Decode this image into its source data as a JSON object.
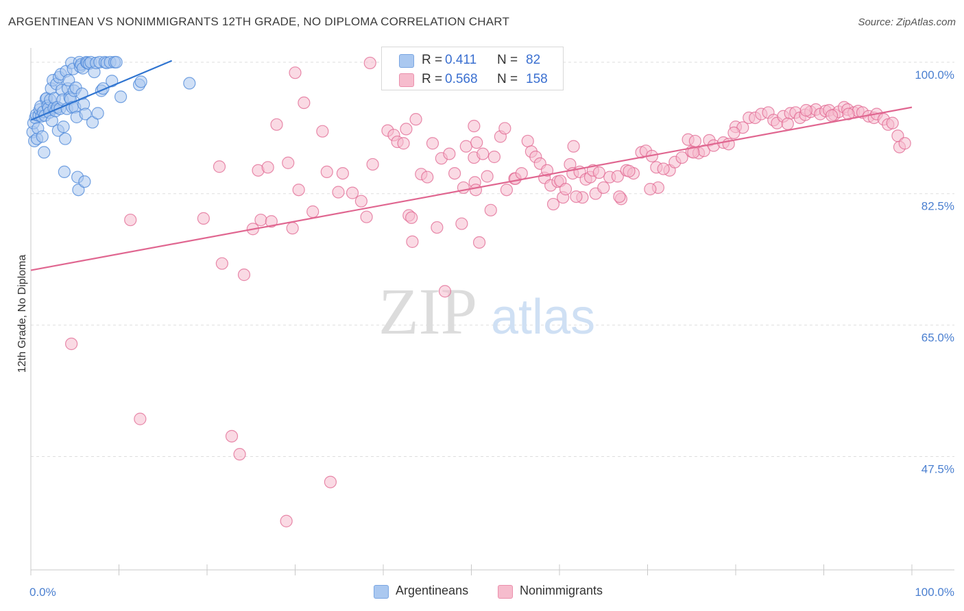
{
  "header": {
    "title": "ARGENTINEAN VS NONIMMIGRANTS 12TH GRADE, NO DIPLOMA CORRELATION CHART",
    "source": "Source: ZipAtlas.com"
  },
  "watermark": {
    "zip": "ZIP",
    "atlas": "atlas"
  },
  "legend": {
    "rows": [
      {
        "r_label": "R =",
        "r_value": "0.411",
        "n_label": "N =",
        "n_value": "82",
        "color": "#aac8f0"
      },
      {
        "r_label": "R =",
        "r_value": "0.568",
        "n_label": "N =",
        "n_value": "158",
        "color": "#f6bccd"
      }
    ]
  },
  "bottom_legend": {
    "items": [
      {
        "label": "Argentineans",
        "color": "#aac8f0"
      },
      {
        "label": "Nonimmigrants",
        "color": "#f6bccd"
      }
    ]
  },
  "chart_data": {
    "type": "scatter",
    "title": "ARGENTINEAN VS NONIMMIGRANTS 12TH GRADE, NO DIPLOMA CORRELATION CHART",
    "xlabel": "",
    "ylabel": "12th Grade, No Diploma",
    "xlim": [
      0,
      100
    ],
    "ylim": [
      32.4,
      101.9
    ],
    "x_tick_labels": [
      "0.0%",
      "100.0%"
    ],
    "y_ticks": [
      47.5,
      65.0,
      82.5,
      100.0
    ],
    "y_tick_labels": [
      "47.5%",
      "65.0%",
      "82.5%",
      "100.0%"
    ],
    "grid": "horizontal dashed",
    "legend_position": "top-center",
    "series": [
      {
        "name": "Argentineans",
        "color": "#4a86d8",
        "fill": "#a9c7ef",
        "regression": {
          "x": [
            0.0,
            16.0
          ],
          "y": 10.0,
          "y_end": 100.2,
          "y_start": 92.3
        },
        "points": [
          [
            0.2,
            90.7
          ],
          [
            0.3,
            91.9
          ],
          [
            0.4,
            89.5
          ],
          [
            0.5,
            92.6
          ],
          [
            0.6,
            93.0
          ],
          [
            0.7,
            89.8
          ],
          [
            0.8,
            91.2
          ],
          [
            0.9,
            92.9
          ],
          [
            1.0,
            93.7
          ],
          [
            1.1,
            94.1
          ],
          [
            1.2,
            92.8
          ],
          [
            1.3,
            90.1
          ],
          [
            1.4,
            93.4
          ],
          [
            1.5,
            88.0
          ],
          [
            1.6,
            92.9
          ],
          [
            1.7,
            95.1
          ],
          [
            1.8,
            95.2
          ],
          [
            1.9,
            94.2
          ],
          [
            2.0,
            93.9
          ],
          [
            2.1,
            93.3
          ],
          [
            2.2,
            95.0
          ],
          [
            2.3,
            96.5
          ],
          [
            2.4,
            92.2
          ],
          [
            2.5,
            97.6
          ],
          [
            2.6,
            93.9
          ],
          [
            2.7,
            95.2
          ],
          [
            2.8,
            93.5
          ],
          [
            2.9,
            97.1
          ],
          [
            3.0,
            94.0
          ],
          [
            3.1,
            90.9
          ],
          [
            3.2,
            98.0
          ],
          [
            3.3,
            93.8
          ],
          [
            3.4,
            98.4
          ],
          [
            3.5,
            96.3
          ],
          [
            3.6,
            95.0
          ],
          [
            3.7,
            91.4
          ],
          [
            3.8,
            85.4
          ],
          [
            3.9,
            89.8
          ],
          [
            4.0,
            98.8
          ],
          [
            4.1,
            93.8
          ],
          [
            4.2,
            96.5
          ],
          [
            4.3,
            97.6
          ],
          [
            4.4,
            95.3
          ],
          [
            4.5,
            95.1
          ],
          [
            4.6,
            99.9
          ],
          [
            4.7,
            94.0
          ],
          [
            4.8,
            99.1
          ],
          [
            4.9,
            96.2
          ],
          [
            5.0,
            94.0
          ],
          [
            5.1,
            96.6
          ],
          [
            5.2,
            92.7
          ],
          [
            5.3,
            84.7
          ],
          [
            5.4,
            83.0
          ],
          [
            5.5,
            100.0
          ],
          [
            5.6,
            99.4
          ],
          [
            5.7,
            99.7
          ],
          [
            5.8,
            95.8
          ],
          [
            5.9,
            99.2
          ],
          [
            6.0,
            94.4
          ],
          [
            6.1,
            84.1
          ],
          [
            6.2,
            93.1
          ],
          [
            6.3,
            100.0
          ],
          [
            6.4,
            99.9
          ],
          [
            6.6,
            99.8
          ],
          [
            6.8,
            100.0
          ],
          [
            7.0,
            92.0
          ],
          [
            7.2,
            98.7
          ],
          [
            7.4,
            99.9
          ],
          [
            7.6,
            93.2
          ],
          [
            7.8,
            100.0
          ],
          [
            8.0,
            96.2
          ],
          [
            8.2,
            96.5
          ],
          [
            8.4,
            100.0
          ],
          [
            8.6,
            99.9
          ],
          [
            9.0,
            100.0
          ],
          [
            9.2,
            97.5
          ],
          [
            9.5,
            100.0
          ],
          [
            9.7,
            100.0
          ],
          [
            10.2,
            95.4
          ],
          [
            12.3,
            97.0
          ],
          [
            12.5,
            97.4
          ],
          [
            18.0,
            97.2
          ]
        ]
      },
      {
        "name": "Nonimmigrants",
        "color": "#e06690",
        "fill": "#f6bccd",
        "regression": {
          "x": [
            0.0,
            100.0
          ],
          "y_start": 72.3,
          "y_end": 94.0
        },
        "points": [
          [
            4.6,
            62.5
          ],
          [
            11.3,
            79.0
          ],
          [
            12.4,
            52.5
          ],
          [
            19.6,
            79.2
          ],
          [
            21.4,
            86.1
          ],
          [
            21.7,
            73.2
          ],
          [
            22.8,
            50.2
          ],
          [
            23.7,
            47.8
          ],
          [
            24.2,
            71.7
          ],
          [
            25.2,
            77.8
          ],
          [
            25.8,
            85.6
          ],
          [
            26.1,
            79.0
          ],
          [
            26.9,
            86.0
          ],
          [
            27.3,
            78.8
          ],
          [
            27.9,
            91.7
          ],
          [
            29.2,
            86.6
          ],
          [
            29.7,
            77.9
          ],
          [
            30.4,
            83.0
          ],
          [
            29.0,
            38.9
          ],
          [
            30.0,
            98.6
          ],
          [
            31.0,
            94.6
          ],
          [
            32.0,
            80.1
          ],
          [
            33.1,
            90.8
          ],
          [
            33.6,
            85.4
          ],
          [
            34.0,
            44.1
          ],
          [
            34.9,
            82.7
          ],
          [
            35.4,
            85.2
          ],
          [
            36.5,
            82.6
          ],
          [
            37.5,
            81.5
          ],
          [
            38.1,
            79.4
          ],
          [
            38.5,
            99.9
          ],
          [
            38.8,
            86.4
          ],
          [
            40.5,
            90.9
          ],
          [
            41.2,
            90.3
          ],
          [
            41.6,
            89.4
          ],
          [
            42.3,
            89.2
          ],
          [
            42.6,
            91.1
          ],
          [
            42.9,
            79.6
          ],
          [
            43.2,
            79.3
          ],
          [
            43.3,
            76.1
          ],
          [
            43.7,
            92.4
          ],
          [
            44.3,
            85.1
          ],
          [
            45.0,
            84.7
          ],
          [
            45.6,
            89.2
          ],
          [
            46.1,
            78.0
          ],
          [
            46.6,
            87.2
          ],
          [
            47.0,
            69.5
          ],
          [
            47.5,
            87.8
          ],
          [
            48.1,
            85.2
          ],
          [
            48.9,
            78.5
          ],
          [
            49.1,
            83.3
          ],
          [
            49.4,
            88.8
          ],
          [
            50.3,
            91.5
          ],
          [
            50.3,
            87.3
          ],
          [
            50.4,
            84.0
          ],
          [
            50.5,
            83.0
          ],
          [
            50.6,
            89.3
          ],
          [
            50.9,
            76.0
          ],
          [
            51.3,
            87.8
          ],
          [
            51.8,
            84.8
          ],
          [
            52.2,
            80.3
          ],
          [
            52.6,
            87.4
          ],
          [
            53.3,
            90.1
          ],
          [
            53.8,
            91.2
          ],
          [
            54.0,
            83.0
          ],
          [
            54.9,
            84.5
          ],
          [
            55.0,
            84.5
          ],
          [
            55.7,
            85.2
          ],
          [
            56.4,
            89.5
          ],
          [
            56.8,
            88.1
          ],
          [
            57.3,
            87.4
          ],
          [
            57.8,
            86.5
          ],
          [
            58.3,
            84.6
          ],
          [
            58.6,
            85.6
          ],
          [
            59.0,
            83.6
          ],
          [
            59.3,
            81.1
          ],
          [
            59.8,
            84.1
          ],
          [
            60.1,
            84.2
          ],
          [
            60.4,
            82.0
          ],
          [
            60.7,
            83.1
          ],
          [
            61.2,
            86.4
          ],
          [
            61.5,
            85.2
          ],
          [
            61.6,
            88.8
          ],
          [
            62.3,
            85.4
          ],
          [
            62.6,
            82.0
          ],
          [
            63.0,
            84.4
          ],
          [
            63.5,
            84.7
          ],
          [
            63.8,
            85.6
          ],
          [
            64.1,
            82.5
          ],
          [
            64.5,
            85.3
          ],
          [
            65.0,
            83.3
          ],
          [
            65.7,
            84.7
          ],
          [
            66.6,
            84.8
          ],
          [
            67.0,
            81.8
          ],
          [
            67.6,
            85.6
          ],
          [
            68.4,
            85.2
          ],
          [
            69.3,
            88.0
          ],
          [
            69.8,
            88.2
          ],
          [
            70.5,
            87.5
          ],
          [
            71.0,
            86.0
          ],
          [
            71.2,
            83.3
          ],
          [
            72.5,
            85.6
          ],
          [
            73.1,
            86.7
          ],
          [
            73.9,
            87.3
          ],
          [
            74.6,
            89.7
          ],
          [
            75.0,
            88.1
          ],
          [
            75.4,
            89.5
          ],
          [
            75.8,
            87.9
          ],
          [
            76.4,
            88.2
          ],
          [
            77.0,
            89.6
          ],
          [
            77.5,
            88.9
          ],
          [
            78.6,
            89.3
          ],
          [
            79.2,
            89.1
          ],
          [
            80.0,
            91.4
          ],
          [
            80.8,
            91.3
          ],
          [
            81.5,
            92.6
          ],
          [
            82.2,
            92.6
          ],
          [
            82.9,
            93.1
          ],
          [
            83.7,
            93.3
          ],
          [
            84.3,
            92.3
          ],
          [
            84.7,
            91.9
          ],
          [
            85.4,
            92.8
          ],
          [
            86.2,
            93.2
          ],
          [
            86.8,
            93.3
          ],
          [
            87.3,
            92.6
          ],
          [
            87.9,
            93.0
          ],
          [
            88.5,
            93.4
          ],
          [
            89.1,
            93.7
          ],
          [
            89.6,
            93.1
          ],
          [
            90.2,
            93.5
          ],
          [
            90.6,
            93.6
          ],
          [
            91.2,
            93.0
          ],
          [
            91.7,
            93.4
          ],
          [
            92.3,
            94.0
          ],
          [
            92.7,
            93.7
          ],
          [
            93.4,
            93.3
          ],
          [
            93.9,
            93.5
          ],
          [
            94.4,
            93.3
          ],
          [
            95.1,
            92.8
          ],
          [
            95.7,
            92.6
          ],
          [
            96.0,
            93.1
          ],
          [
            96.8,
            92.4
          ],
          [
            97.3,
            91.7
          ],
          [
            97.8,
            91.9
          ],
          [
            98.4,
            90.2
          ],
          [
            98.6,
            88.7
          ],
          [
            99.2,
            89.2
          ],
          [
            61.9,
            82.1
          ],
          [
            66.8,
            82.1
          ],
          [
            70.3,
            83.1
          ],
          [
            88.0,
            93.6
          ],
          [
            90.9,
            92.9
          ],
          [
            92.8,
            93.1
          ],
          [
            75.2,
            88.0
          ],
          [
            79.8,
            90.6
          ],
          [
            85.9,
            91.8
          ],
          [
            67.9,
            85.5
          ],
          [
            71.8,
            85.8
          ]
        ]
      }
    ]
  }
}
